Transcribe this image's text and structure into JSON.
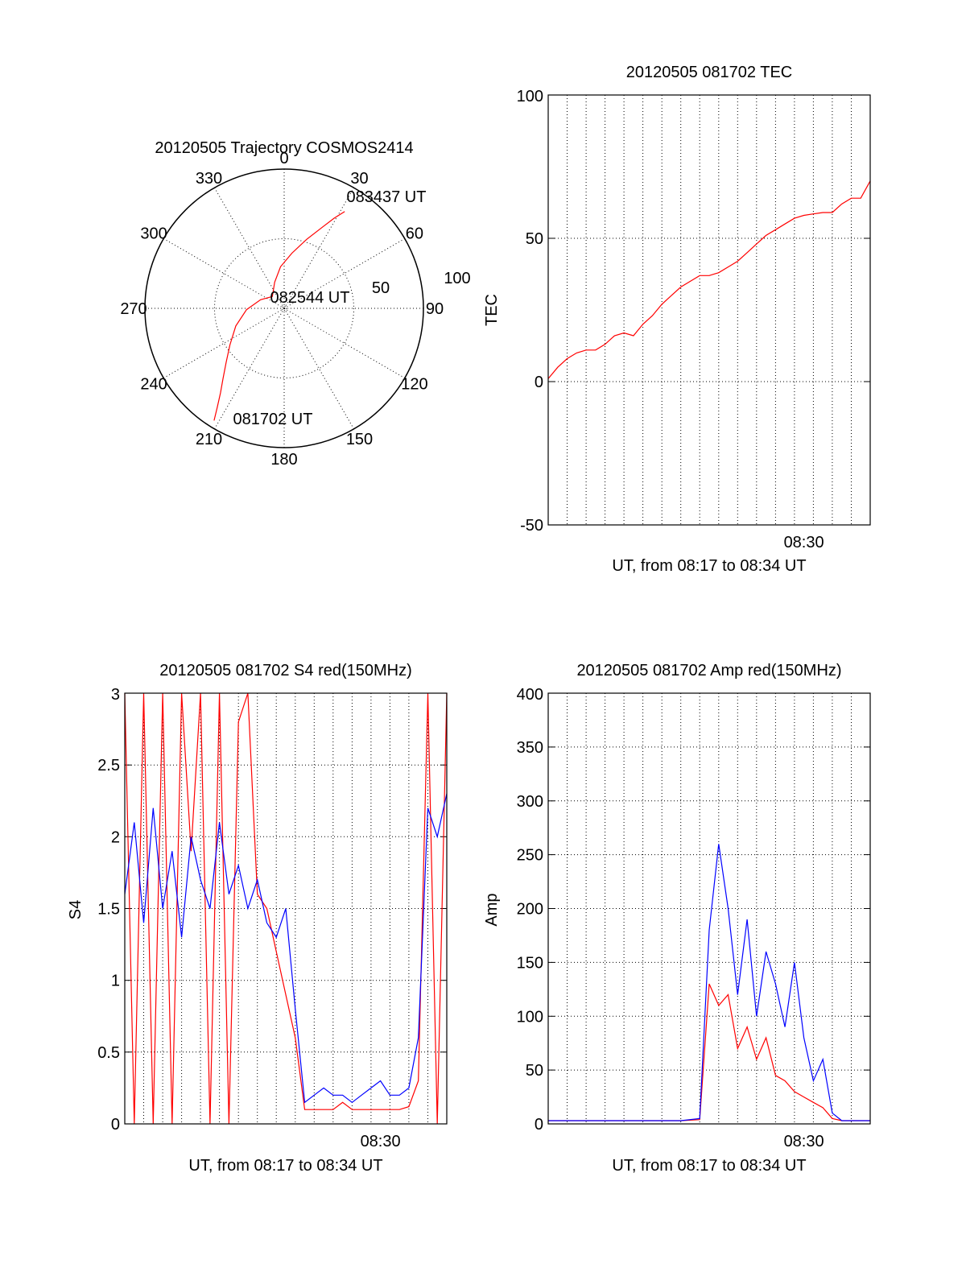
{
  "colors": {
    "red": "#ff0000",
    "blue": "#0000ff",
    "axis": "#000000",
    "grid": "#000000"
  },
  "chart_data": [
    {
      "type": "polar",
      "title": "20120505 Trajectory COSMOS2414",
      "angle_labels": [
        "0",
        "30",
        "60",
        "90",
        "120",
        "150",
        "180",
        "210",
        "240",
        "270",
        "300",
        "330"
      ],
      "radial_labels": [
        "50",
        "100"
      ],
      "radial_lim": [
        0,
        100
      ],
      "grid": true,
      "annotations": [
        {
          "text": "083437 UT",
          "azimuth": 32,
          "elevation": 18
        },
        {
          "text": "082544 UT",
          "azimuth": 150,
          "elevation": 90
        },
        {
          "text": "081702 UT",
          "azimuth": 212,
          "elevation": 5
        }
      ],
      "series": [
        {
          "color": "#ff0000",
          "azimuth": [
            212,
            214,
            217,
            221,
            227,
            236,
            250,
            268,
            290,
            315,
            340,
            355,
            8,
            18,
            25,
            29,
            32
          ],
          "elevation": [
            5,
            14,
            24,
            33,
            43,
            53,
            63,
            73,
            82,
            88,
            80,
            70,
            60,
            48,
            36,
            26,
            18
          ]
        }
      ]
    },
    {
      "type": "line",
      "title": "20120505 081702 TEC",
      "xlabel": "UT, from 08:17 to 08:34 UT",
      "ylabel": "TEC",
      "x_tick_labels": [
        "08:30"
      ],
      "x_tick_positions_min": [
        13.5
      ],
      "xlim": [
        0,
        17
      ],
      "ylim": [
        -50,
        100
      ],
      "y_tick_labels": [
        "-50",
        "0",
        "50",
        "100"
      ],
      "grid": true,
      "series": [
        {
          "color": "#ff0000",
          "x": [
            0,
            0.5,
            1,
            1.5,
            2,
            2.5,
            3,
            3.5,
            4,
            4.5,
            5,
            5.5,
            6,
            6.5,
            7,
            7.5,
            8,
            8.5,
            9,
            9.5,
            10,
            10.5,
            11,
            11.5,
            12,
            12.5,
            13,
            13.5,
            14,
            14.5,
            15,
            15.5,
            16,
            16.5,
            17
          ],
          "y": [
            1,
            5,
            8,
            10,
            11,
            11,
            13,
            16,
            17,
            16,
            20,
            23,
            27,
            30,
            33,
            35,
            37,
            37,
            38,
            40,
            42,
            45,
            48,
            51,
            53,
            55,
            57,
            58,
            58.5,
            59,
            59,
            62,
            64,
            64,
            70
          ]
        }
      ]
    },
    {
      "type": "line",
      "title": "20120505 081702 S4 red(150MHz)",
      "xlabel": "UT, from 08:17 to 08:34 UT",
      "ylabel": "S4",
      "x_tick_labels": [
        "08:30"
      ],
      "x_tick_positions_min": [
        13.5
      ],
      "xlim": [
        0,
        17
      ],
      "ylim": [
        0,
        3
      ],
      "y_tick_labels": [
        "0",
        "0.5",
        "1",
        "1.5",
        "2",
        "2.5",
        "3"
      ],
      "grid": true,
      "series": [
        {
          "color": "#ff0000",
          "x": [
            0,
            0.5,
            1,
            1.5,
            2,
            2.5,
            3,
            3.5,
            4,
            4.5,
            5,
            5.5,
            6,
            6.5,
            7,
            7.5,
            8,
            8.5,
            9,
            9.5,
            10,
            10.5,
            11,
            11.5,
            12,
            12.5,
            13,
            13.5,
            14,
            14.5,
            15,
            15.5,
            16,
            16.5,
            17
          ],
          "y": [
            3,
            0,
            3,
            0,
            3,
            0,
            3,
            1.9,
            3,
            0,
            3,
            0,
            2.8,
            3,
            1.6,
            1.5,
            1.2,
            0.9,
            0.6,
            0.1,
            0.1,
            0.1,
            0.1,
            0.15,
            0.1,
            0.1,
            0.1,
            0.1,
            0.1,
            0.1,
            0.12,
            0.3,
            3,
            0,
            3
          ]
        },
        {
          "color": "#0000ff",
          "x": [
            0,
            0.5,
            1,
            1.5,
            2,
            2.5,
            3,
            3.5,
            4,
            4.5,
            5,
            5.5,
            6,
            6.5,
            7,
            7.5,
            8,
            8.5,
            9,
            9.5,
            10,
            10.5,
            11,
            11.5,
            12,
            12.5,
            13,
            13.5,
            14,
            14.5,
            15,
            15.5,
            16,
            16.5,
            17
          ],
          "y": [
            1.6,
            2.1,
            1.4,
            2.2,
            1.5,
            1.9,
            1.3,
            2.0,
            1.7,
            1.5,
            2.1,
            1.6,
            1.8,
            1.5,
            1.7,
            1.4,
            1.3,
            1.5,
            0.8,
            0.15,
            0.2,
            0.25,
            0.2,
            0.2,
            0.15,
            0.2,
            0.25,
            0.3,
            0.2,
            0.2,
            0.25,
            0.6,
            2.2,
            2.0,
            2.3
          ]
        }
      ]
    },
    {
      "type": "line",
      "title": "20120505 081702 Amp red(150MHz)",
      "xlabel": "UT, from 08:17 to 08:34 UT",
      "ylabel": "Amp",
      "x_tick_labels": [
        "08:30"
      ],
      "x_tick_positions_min": [
        13.5
      ],
      "xlim": [
        0,
        17
      ],
      "ylim": [
        0,
        400
      ],
      "y_tick_labels": [
        "0",
        "50",
        "100",
        "150",
        "200",
        "250",
        "300",
        "350",
        "400"
      ],
      "grid": true,
      "series": [
        {
          "color": "#ff0000",
          "x": [
            0,
            1,
            2,
            3,
            4,
            5,
            6,
            7,
            8,
            8.5,
            9,
            9.5,
            10,
            10.5,
            11,
            11.5,
            12,
            12.5,
            13,
            13.5,
            14,
            14.5,
            15,
            15.5,
            16,
            17
          ],
          "y": [
            3,
            3,
            3,
            3,
            3,
            3,
            3,
            3,
            4,
            130,
            110,
            120,
            70,
            90,
            60,
            80,
            45,
            40,
            30,
            25,
            20,
            15,
            5,
            3,
            3,
            3
          ]
        },
        {
          "color": "#0000ff",
          "x": [
            0,
            1,
            2,
            3,
            4,
            5,
            6,
            7,
            8,
            8.5,
            9,
            9.5,
            10,
            10.5,
            11,
            11.5,
            12,
            12.5,
            13,
            13.5,
            14,
            14.5,
            15,
            15.5,
            16,
            17
          ],
          "y": [
            3,
            3,
            3,
            3,
            3,
            3,
            3,
            3,
            5,
            180,
            260,
            200,
            120,
            190,
            100,
            160,
            130,
            90,
            150,
            80,
            40,
            60,
            10,
            3,
            3,
            3
          ]
        }
      ]
    }
  ]
}
